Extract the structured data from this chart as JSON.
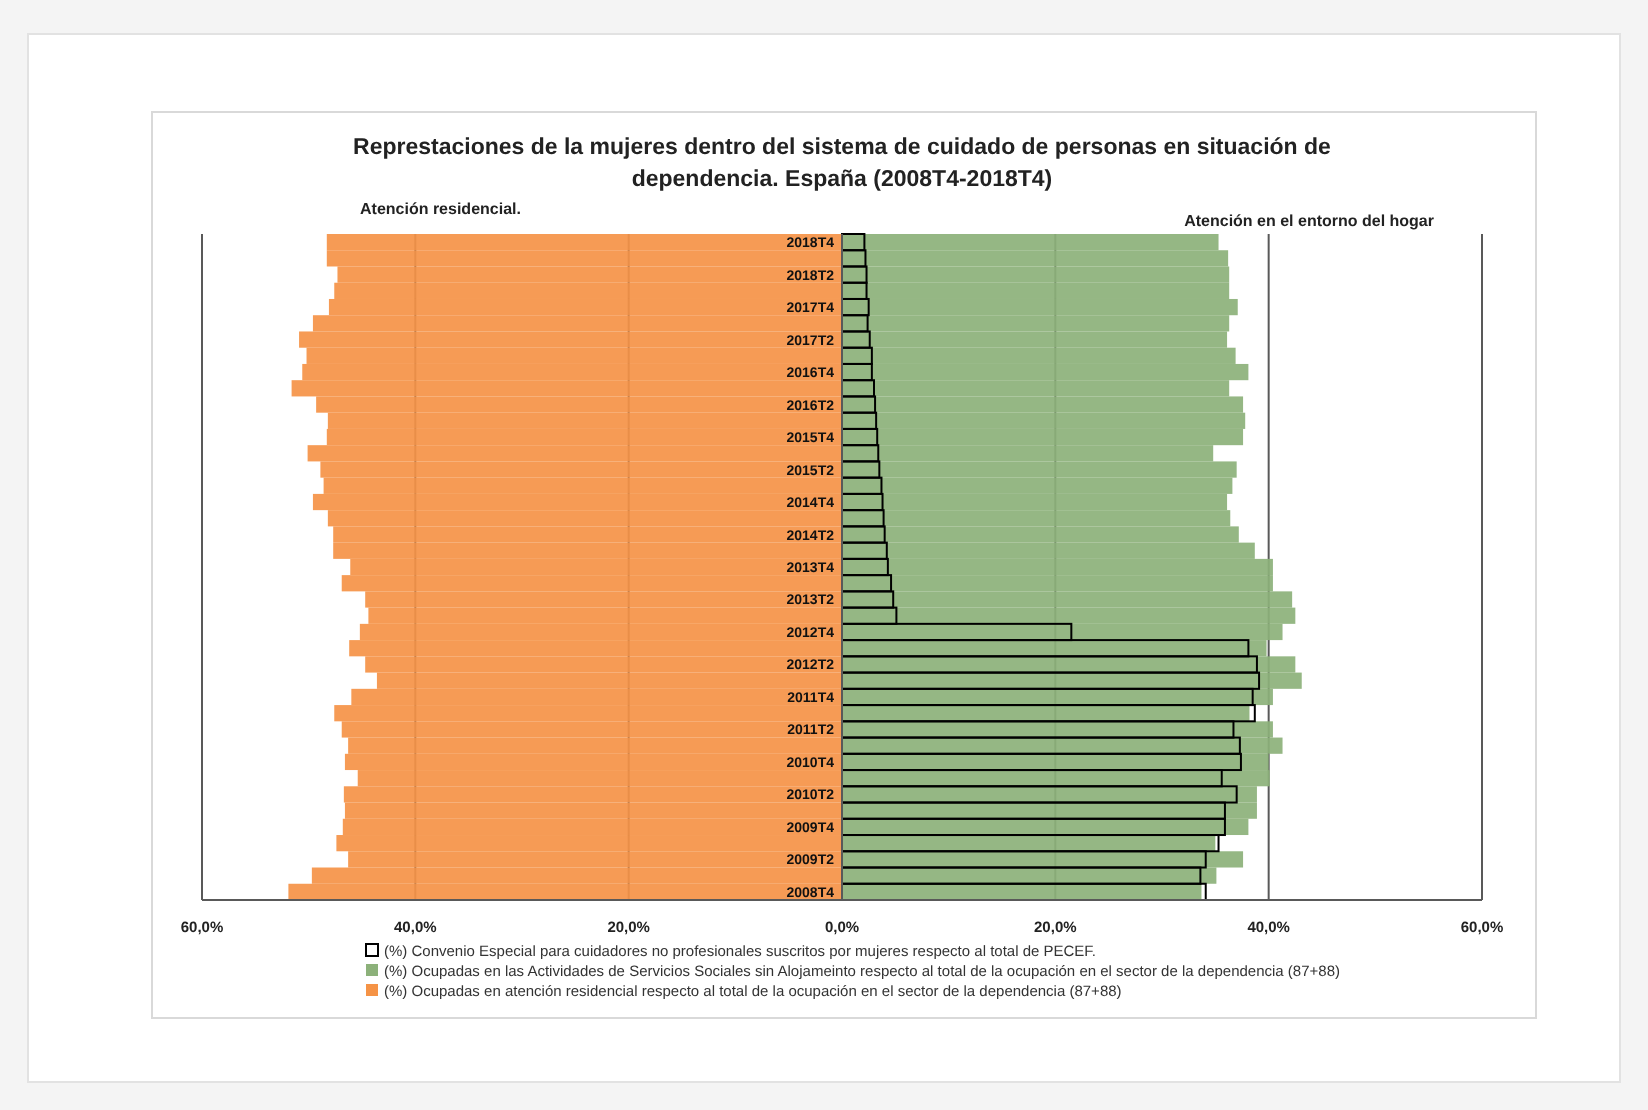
{
  "chart_data": {
    "type": "bar",
    "orientation": "horizontal",
    "title": "Represtaciones de la mujeres dentro del  sistema de cuidado de personas en situación de dependencia. España (2008T4-2018T4)",
    "annotations": [
      "Atención residencial.",
      "Atención en el entorno del hogar"
    ],
    "categories": [
      "2018T4",
      null,
      "2018T2",
      null,
      "2017T4",
      null,
      "2017T2",
      null,
      "2016T4",
      null,
      "2016T2",
      null,
      "2015T4",
      null,
      "2015T2",
      null,
      "2014T4",
      null,
      "2014T2",
      null,
      "2013T4",
      null,
      "2013T2",
      null,
      "2012T4",
      null,
      "2012T2",
      null,
      "2011T4",
      null,
      "2011T2",
      null,
      "2010T4",
      null,
      "2010T2",
      null,
      "2009T4",
      null,
      "2009T2",
      null,
      "2008T4"
    ],
    "series": [
      {
        "name": "(%) Convenio Especial para cuidadores no profesionales suscritos por mujeres respecto al total de PECEF.",
        "color": "#000000",
        "values": [
          2.1,
          2.2,
          2.3,
          2.3,
          2.5,
          2.4,
          2.6,
          2.8,
          2.8,
          3.0,
          3.1,
          3.2,
          3.3,
          3.4,
          3.5,
          3.7,
          3.8,
          3.9,
          4.0,
          4.2,
          4.3,
          4.6,
          4.8,
          5.1,
          21.5,
          38.1,
          38.9,
          39.1,
          38.5,
          38.7,
          36.7,
          37.3,
          37.4,
          35.6,
          37.0,
          35.9,
          35.9,
          35.3,
          34.1,
          33.6,
          34.1
        ]
      },
      {
        "name": "(%) Ocupadas en las Actividades de Servicios Sociales sin Alojameinto respecto al total de la ocupación en el sector de la dependencia (87+88)",
        "color": "#8cb17a",
        "values": [
          35.3,
          36.2,
          36.3,
          36.3,
          37.1,
          36.3,
          36.1,
          36.9,
          38.1,
          36.3,
          37.6,
          37.8,
          37.6,
          34.8,
          37.0,
          36.6,
          36.1,
          36.4,
          37.2,
          38.7,
          40.4,
          40.4,
          42.2,
          42.5,
          41.3,
          39.8,
          42.5,
          43.1,
          40.4,
          38.2,
          40.4,
          41.3,
          40.0,
          40.1,
          38.9,
          38.9,
          38.1,
          35.0,
          37.6,
          35.1,
          33.7
        ]
      },
      {
        "name": "(%) Ocupadas en atención residencial respecto al total de la ocupación en el sector de la dependencia (87+88)",
        "color": "#f59346",
        "values": [
          -48.3,
          -48.3,
          -47.3,
          -47.6,
          -48.1,
          -49.6,
          -50.9,
          -50.2,
          -50.6,
          -51.6,
          -49.3,
          -48.2,
          -48.3,
          -50.1,
          -48.9,
          -48.6,
          -49.6,
          -48.2,
          -47.7,
          -47.7,
          -46.1,
          -46.9,
          -44.7,
          -44.4,
          -45.2,
          -46.2,
          -44.7,
          -43.6,
          -46.0,
          -47.6,
          -46.9,
          -46.3,
          -46.6,
          -45.4,
          -46.7,
          -46.6,
          -46.8,
          -47.4,
          -46.3,
          -49.7,
          -51.9
        ]
      }
    ],
    "xlim": [
      -60,
      60
    ],
    "xticks": [
      {
        "value": -60,
        "label": "60,0%"
      },
      {
        "value": -40,
        "label": "40,0%"
      },
      {
        "value": -20,
        "label": "20,0%"
      },
      {
        "value": 0,
        "label": "0,0%"
      },
      {
        "value": 20,
        "label": "20,0%"
      },
      {
        "value": 40,
        "label": "40,0%"
      },
      {
        "value": 60,
        "label": "60,0%"
      }
    ],
    "grid": "x",
    "legend": "bottom"
  }
}
